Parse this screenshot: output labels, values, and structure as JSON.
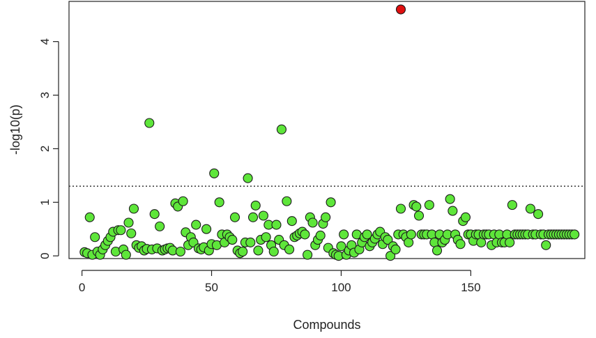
{
  "chart_data": {
    "type": "scatter",
    "xlabel": "Compounds",
    "ylabel": "-log10(p)",
    "xlim": [
      -5,
      194
    ],
    "ylim": [
      -0.05,
      4.75
    ],
    "x_ticks": [
      0,
      50,
      100,
      150
    ],
    "y_ticks": [
      0,
      1,
      2,
      3,
      4
    ],
    "x_tick_labels": [
      "0",
      "50",
      "100",
      "150"
    ],
    "y_tick_labels": [
      "0",
      "1",
      "2",
      "3",
      "4"
    ],
    "threshold": 1.3,
    "threshold_style": "dotted",
    "colors": {
      "normal": "#5ee63a",
      "highlight": "#e01010",
      "outline": "#1a1a1a",
      "threshold": "#444444"
    },
    "series": [
      {
        "highlight": false,
        "points": [
          [
            1,
            0.07
          ],
          [
            2,
            0.05
          ],
          [
            3,
            0.72
          ],
          [
            4,
            0.02
          ],
          [
            5,
            0.35
          ],
          [
            6,
            0.08
          ],
          [
            7,
            0.02
          ],
          [
            8,
            0.12
          ],
          [
            9,
            0.2
          ],
          [
            10,
            0.28
          ],
          [
            11,
            0.35
          ],
          [
            12,
            0.45
          ],
          [
            13,
            0.08
          ],
          [
            14,
            0.48
          ],
          [
            15,
            0.48
          ],
          [
            16,
            0.12
          ],
          [
            17,
            0.02
          ],
          [
            18,
            0.62
          ],
          [
            19,
            0.42
          ],
          [
            20,
            0.88
          ],
          [
            21,
            0.2
          ],
          [
            22,
            0.15
          ],
          [
            23,
            0.18
          ],
          [
            24,
            0.1
          ],
          [
            25,
            0.13
          ],
          [
            26,
            2.48
          ],
          [
            27,
            0.12
          ],
          [
            28,
            0.78
          ],
          [
            29,
            0.14
          ],
          [
            30,
            0.55
          ],
          [
            31,
            0.1
          ],
          [
            32,
            0.12
          ],
          [
            33,
            0.14
          ],
          [
            34,
            0.15
          ],
          [
            35,
            0.1
          ],
          [
            36,
            0.98
          ],
          [
            37,
            0.92
          ],
          [
            38,
            0.08
          ],
          [
            39,
            1.02
          ],
          [
            40,
            0.44
          ],
          [
            41,
            0.2
          ],
          [
            42,
            0.35
          ],
          [
            43,
            0.25
          ],
          [
            44,
            0.58
          ],
          [
            45,
            0.14
          ],
          [
            46,
            0.12
          ],
          [
            47,
            0.16
          ],
          [
            48,
            0.5
          ],
          [
            49,
            0.1
          ],
          [
            50,
            0.22
          ],
          [
            51,
            1.54
          ],
          [
            52,
            0.2
          ],
          [
            53,
            1.0
          ],
          [
            54,
            0.4
          ],
          [
            55,
            0.25
          ],
          [
            56,
            0.4
          ],
          [
            57,
            0.35
          ],
          [
            58,
            0.3
          ],
          [
            59,
            0.72
          ],
          [
            60,
            0.1
          ],
          [
            61,
            0.05
          ],
          [
            62,
            0.08
          ],
          [
            63,
            0.25
          ],
          [
            64,
            1.45
          ],
          [
            65,
            0.25
          ],
          [
            66,
            0.72
          ],
          [
            67,
            0.94
          ],
          [
            68,
            0.1
          ],
          [
            69,
            0.3
          ],
          [
            70,
            0.75
          ],
          [
            71,
            0.35
          ],
          [
            72,
            0.58
          ],
          [
            73,
            0.2
          ],
          [
            74,
            0.08
          ],
          [
            75,
            0.58
          ],
          [
            76,
            0.3
          ],
          [
            77,
            2.36
          ],
          [
            78,
            0.2
          ],
          [
            79,
            1.02
          ],
          [
            80,
            0.12
          ],
          [
            81,
            0.65
          ],
          [
            82,
            0.35
          ],
          [
            83,
            0.38
          ],
          [
            84,
            0.42
          ],
          [
            85,
            0.45
          ],
          [
            86,
            0.4
          ],
          [
            87,
            0.02
          ],
          [
            88,
            0.72
          ],
          [
            89,
            0.62
          ],
          [
            90,
            0.2
          ],
          [
            91,
            0.3
          ],
          [
            92,
            0.38
          ],
          [
            93,
            0.6
          ],
          [
            94,
            0.72
          ],
          [
            95,
            0.15
          ],
          [
            96,
            1.0
          ],
          [
            97,
            0.05
          ],
          [
            98,
            0.02
          ],
          [
            99,
            0.0
          ],
          [
            100,
            0.18
          ],
          [
            101,
            0.4
          ],
          [
            102,
            0.02
          ],
          [
            103,
            0.1
          ],
          [
            104,
            0.2
          ],
          [
            105,
            0.06
          ],
          [
            106,
            0.4
          ],
          [
            107,
            0.12
          ],
          [
            108,
            0.25
          ],
          [
            109,
            0.35
          ],
          [
            110,
            0.4
          ],
          [
            111,
            0.18
          ],
          [
            112,
            0.25
          ],
          [
            113,
            0.32
          ],
          [
            114,
            0.4
          ],
          [
            115,
            0.45
          ],
          [
            116,
            0.22
          ],
          [
            117,
            0.35
          ],
          [
            118,
            0.3
          ],
          [
            119,
            0.0
          ],
          [
            120,
            0.18
          ],
          [
            121,
            0.12
          ],
          [
            122,
            0.4
          ],
          [
            123,
            0.88
          ],
          [
            124,
            0.4
          ],
          [
            125,
            0.35
          ],
          [
            126,
            0.25
          ],
          [
            127,
            0.4
          ],
          [
            128,
            0.95
          ],
          [
            129,
            0.92
          ],
          [
            130,
            0.75
          ],
          [
            131,
            0.4
          ],
          [
            132,
            0.4
          ],
          [
            133,
            0.4
          ],
          [
            134,
            0.95
          ],
          [
            135,
            0.4
          ],
          [
            136,
            0.25
          ],
          [
            137,
            0.1
          ],
          [
            138,
            0.4
          ],
          [
            139,
            0.25
          ],
          [
            140,
            0.3
          ],
          [
            141,
            0.4
          ],
          [
            142,
            1.06
          ],
          [
            143,
            0.84
          ],
          [
            144,
            0.4
          ],
          [
            145,
            0.3
          ],
          [
            146,
            0.22
          ],
          [
            147,
            0.65
          ],
          [
            148,
            0.72
          ],
          [
            149,
            0.4
          ],
          [
            150,
            0.4
          ],
          [
            151,
            0.28
          ],
          [
            152,
            0.4
          ],
          [
            153,
            0.4
          ],
          [
            154,
            0.25
          ],
          [
            155,
            0.4
          ],
          [
            156,
            0.4
          ],
          [
            157,
            0.4
          ],
          [
            158,
            0.2
          ],
          [
            159,
            0.4
          ],
          [
            160,
            0.25
          ],
          [
            161,
            0.4
          ],
          [
            162,
            0.25
          ],
          [
            163,
            0.25
          ],
          [
            164,
            0.4
          ],
          [
            165,
            0.25
          ],
          [
            166,
            0.95
          ],
          [
            167,
            0.4
          ],
          [
            168,
            0.4
          ],
          [
            169,
            0.4
          ],
          [
            170,
            0.4
          ],
          [
            171,
            0.4
          ],
          [
            172,
            0.4
          ],
          [
            173,
            0.88
          ],
          [
            174,
            0.4
          ],
          [
            175,
            0.4
          ],
          [
            176,
            0.78
          ],
          [
            177,
            0.4
          ],
          [
            178,
            0.4
          ],
          [
            179,
            0.2
          ],
          [
            180,
            0.4
          ],
          [
            181,
            0.4
          ],
          [
            182,
            0.4
          ],
          [
            183,
            0.4
          ],
          [
            184,
            0.4
          ],
          [
            185,
            0.4
          ],
          [
            186,
            0.4
          ],
          [
            187,
            0.4
          ],
          [
            188,
            0.4
          ],
          [
            189,
            0.4
          ],
          [
            190,
            0.4
          ]
        ]
      },
      {
        "highlight": true,
        "points": [
          [
            123,
            4.6
          ]
        ]
      }
    ]
  }
}
